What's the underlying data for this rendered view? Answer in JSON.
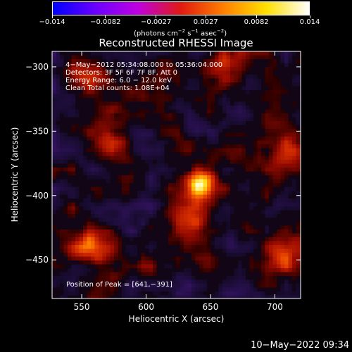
{
  "colorbar": {
    "ticks": [
      "−0.014",
      "−0.0082",
      "−0.0027",
      "0.0027",
      "0.0082",
      "0.014"
    ],
    "tick_values": [
      -0.014,
      -0.0082,
      -0.0027,
      0.0027,
      0.0082,
      0.014
    ],
    "unit_prefix": "(photons cm",
    "unit_exp1": "−2",
    "unit_mid": " s",
    "unit_exp2": "−1",
    "unit_mid2": " asec",
    "unit_exp3": "−2",
    "unit_suffix": ")",
    "colors": [
      "#0000ff",
      "#6a00ff",
      "#c000e0",
      "#e01a10",
      "#ff8000",
      "#ffe000",
      "#ffffff"
    ]
  },
  "chart_data": {
    "type": "heatmap",
    "title": "Reconstructed RHESSI Image",
    "xlabel": "Heliocentric X (arcsec)",
    "ylabel": "Heliocentric Y (arcsec)",
    "xlim": [
      527,
      720
    ],
    "ylim": [
      -480,
      -288
    ],
    "xticks": [
      550,
      600,
      650,
      700
    ],
    "yticks": [
      -300,
      -350,
      -400,
      -450
    ],
    "xtick_labels": [
      "550",
      "600",
      "650",
      "700"
    ],
    "ytick_labels": [
      "−300",
      "−350",
      "−400",
      "−450"
    ],
    "peak_position": [
      641,
      -391
    ],
    "sources": [
      {
        "x": 641,
        "y": -391,
        "intensity": 1.0
      },
      {
        "x": 633,
        "y": -420,
        "intensity": 0.45
      },
      {
        "x": 555,
        "y": -440,
        "intensity": 0.5
      },
      {
        "x": 570,
        "y": -358,
        "intensity": 0.45
      },
      {
        "x": 556,
        "y": -311,
        "intensity": 0.35
      },
      {
        "x": 706,
        "y": -448,
        "intensity": 0.4
      },
      {
        "x": 710,
        "y": -365,
        "intensity": 0.3
      },
      {
        "x": 662,
        "y": -298,
        "intensity": 0.35
      }
    ],
    "info_lines": [
      " 4−May−2012 05:34:08.000 to 05:36:04.000",
      "Detectors: 3F 5F 6F 7F 8F, Att 0",
      "Energy Range: 6.0 − 12.0 keV",
      "Clean    Total counts: 1.08E+04"
    ],
    "peak_label": "Position of Peak = [641,−391]"
  },
  "footer": {
    "timestamp": "10−May−2022 09:34"
  }
}
